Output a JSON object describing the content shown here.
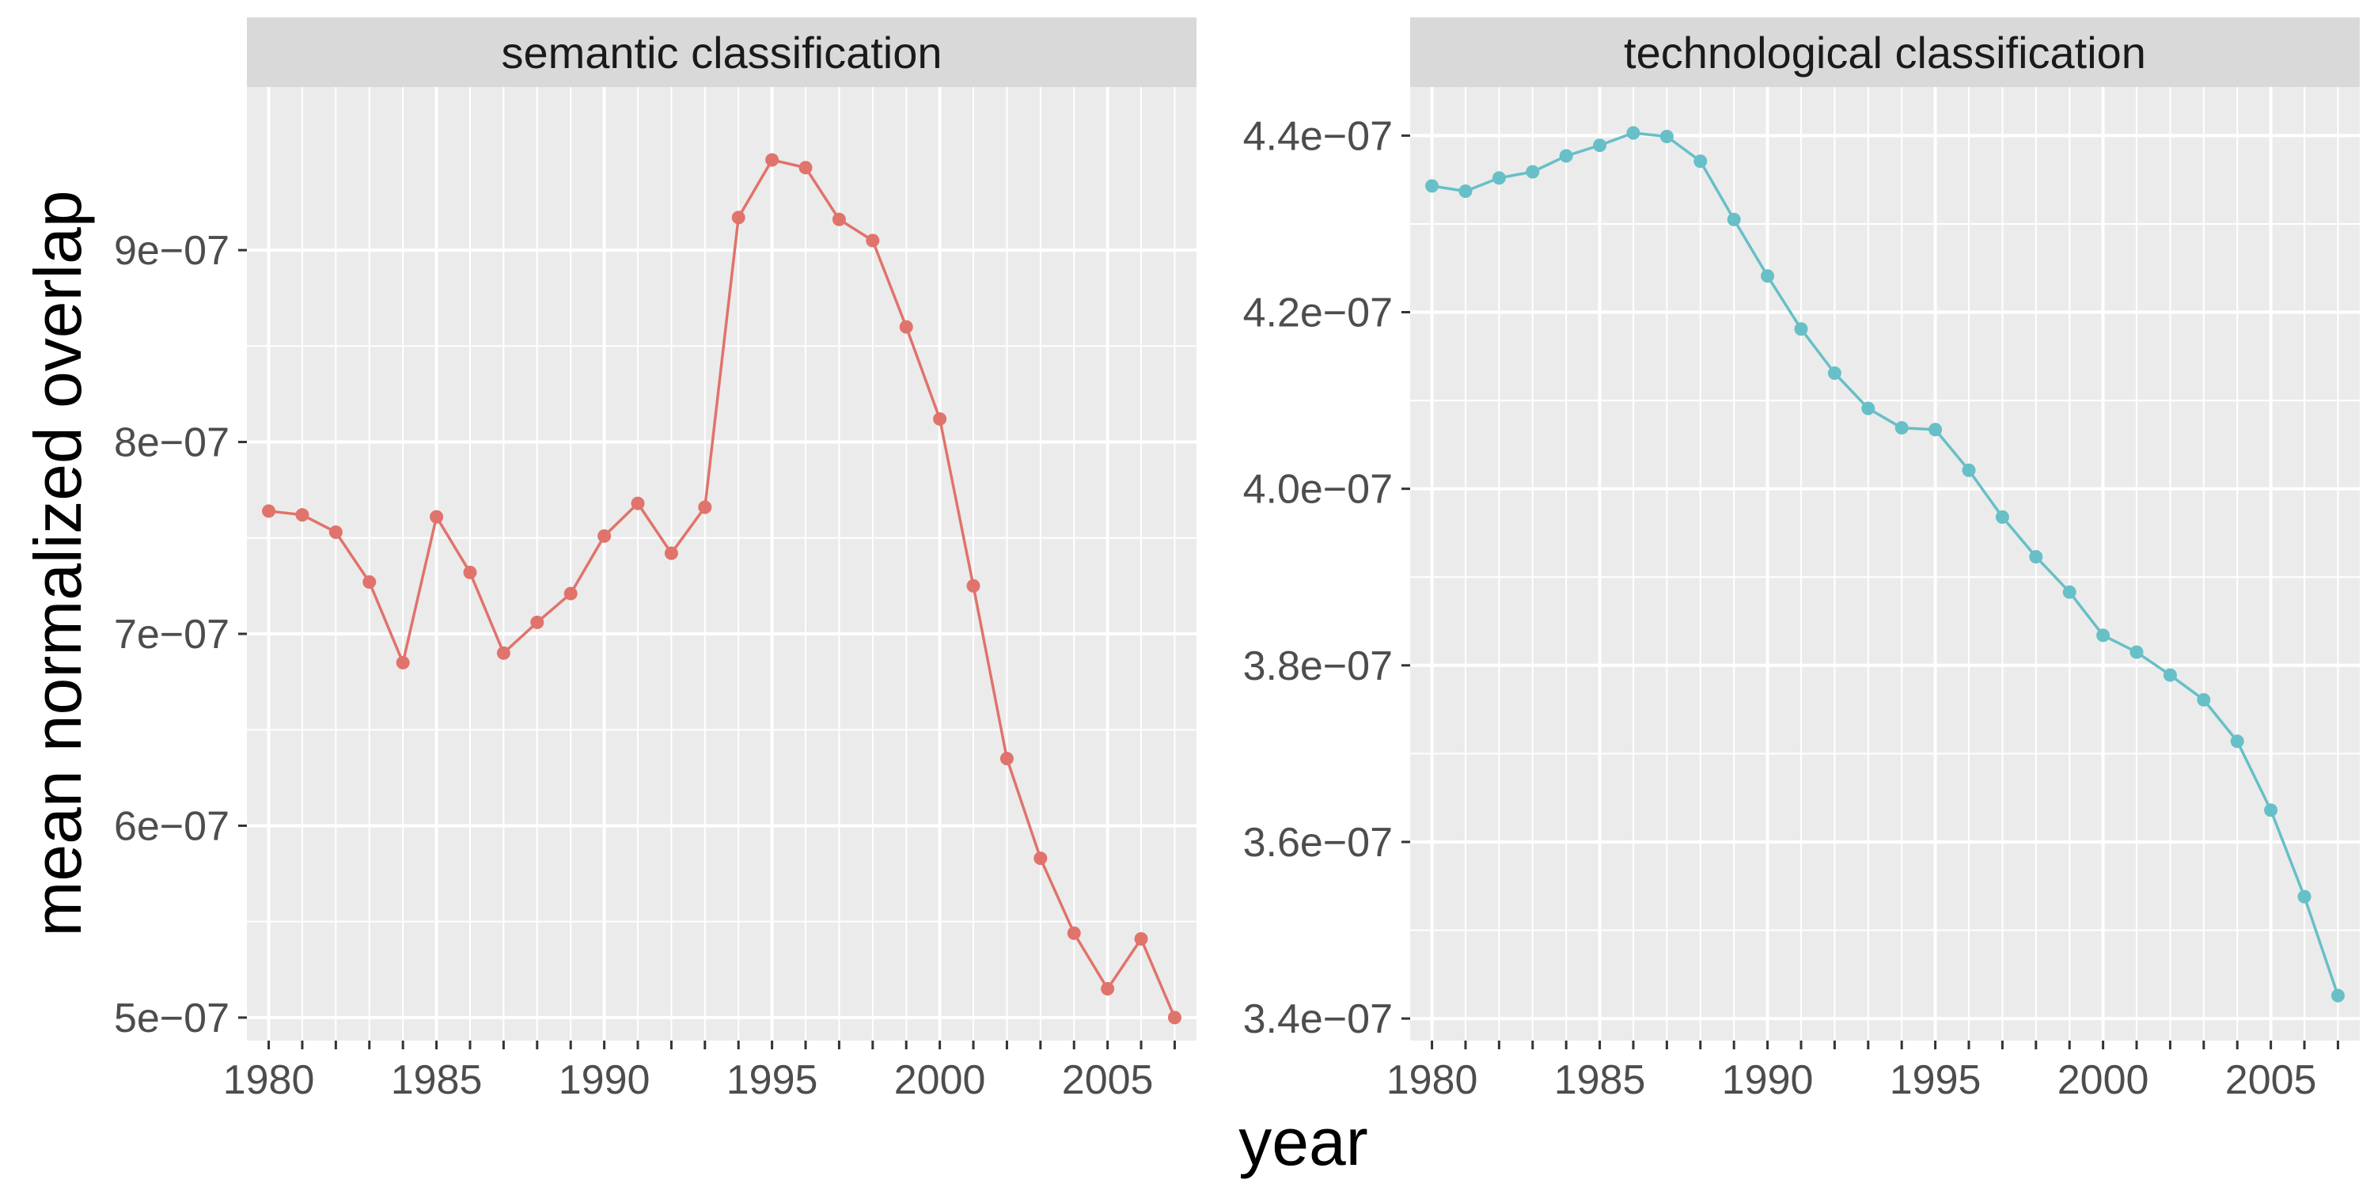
{
  "chart_data": {
    "type": "line",
    "ylabel": "mean normalized overlap",
    "xlabel": "year",
    "grid": true,
    "colors": {
      "semantic": "#E0736B",
      "technological": "#67BFC7",
      "panel_bg": "#EBEBEB",
      "strip_bg": "#D9D9D9",
      "grid": "#FFFFFF"
    },
    "x": [
      1980,
      1981,
      1982,
      1983,
      1984,
      1985,
      1986,
      1987,
      1988,
      1989,
      1990,
      1991,
      1992,
      1993,
      1994,
      1995,
      1996,
      1997,
      1998,
      1999,
      2000,
      2001,
      2002,
      2003,
      2004,
      2005,
      2006,
      2007
    ],
    "x_ticks": [
      1980,
      1985,
      1990,
      1995,
      2000,
      2005
    ],
    "x_tick_labels": [
      "1980",
      "1985",
      "1990",
      "1995",
      "2000",
      "2005"
    ],
    "xlim": [
      1979.35,
      2007.65
    ],
    "panels": [
      {
        "title": "semantic classification",
        "ylim": [
          4.88e-07,
          9.85e-07
        ],
        "y_ticks": [
          5e-07,
          6e-07,
          7e-07,
          8e-07,
          9e-07
        ],
        "y_tick_labels": [
          "5e−07",
          "6e−07",
          "7e−07",
          "8e−07",
          "9e−07"
        ],
        "values": [
          7.64e-07,
          7.62e-07,
          7.53e-07,
          7.27e-07,
          6.85e-07,
          7.61e-07,
          7.32e-07,
          6.9e-07,
          7.06e-07,
          7.21e-07,
          7.51e-07,
          7.68e-07,
          7.42e-07,
          7.66e-07,
          9.17e-07,
          9.47e-07,
          9.43e-07,
          9.16e-07,
          9.05e-07,
          8.6e-07,
          8.12e-07,
          7.25e-07,
          6.35e-07,
          5.83e-07,
          5.44e-07,
          5.15e-07,
          5.41e-07,
          5e-07
        ]
      },
      {
        "title": "technological classification",
        "ylim": [
          3.375e-07,
          4.455e-07
        ],
        "y_ticks": [
          3.4e-07,
          3.6e-07,
          3.8e-07,
          4e-07,
          4.2e-07,
          4.4e-07
        ],
        "y_tick_labels": [
          "3.4e−07",
          "3.6e−07",
          "3.8e−07",
          "4.0e−07",
          "4.2e−07",
          "4.4e−07"
        ],
        "values": [
          4.343e-07,
          4.337e-07,
          4.352e-07,
          4.359e-07,
          4.377e-07,
          4.389e-07,
          4.403e-07,
          4.399e-07,
          4.371e-07,
          4.305e-07,
          4.241e-07,
          4.181e-07,
          4.131e-07,
          4.091e-07,
          4.069e-07,
          4.067e-07,
          4.021e-07,
          3.968e-07,
          3.923e-07,
          3.883e-07,
          3.834e-07,
          3.815e-07,
          3.789e-07,
          3.761e-07,
          3.714e-07,
          3.636e-07,
          3.538e-07,
          3.426e-07
        ]
      }
    ]
  }
}
